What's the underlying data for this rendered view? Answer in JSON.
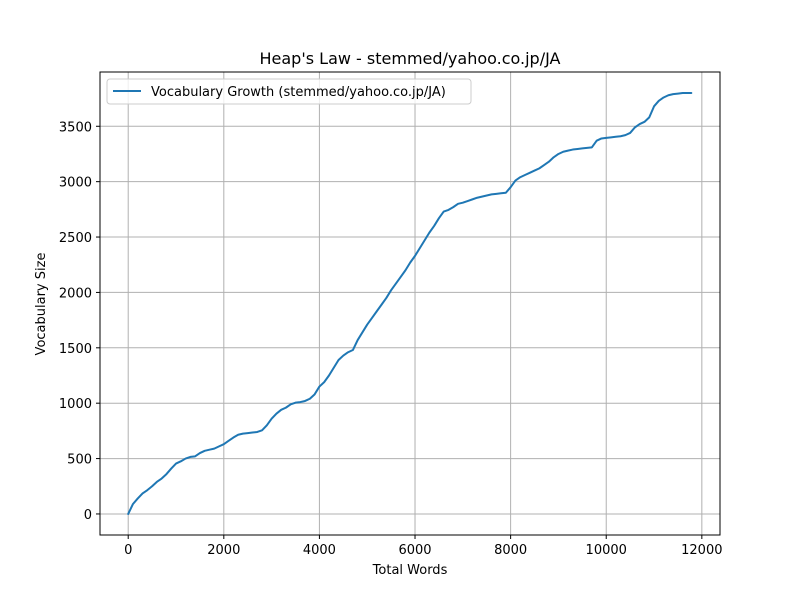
{
  "chart_data": {
    "type": "line",
    "title": "Heap's Law - stemmed/yahoo.co.jp/JA",
    "xlabel": "Total Words",
    "ylabel": "Vocabulary Size",
    "xlim": [
      -590,
      12380
    ],
    "ylim": [
      -190,
      3990
    ],
    "x_ticks": [
      0,
      2000,
      4000,
      6000,
      8000,
      10000,
      12000
    ],
    "x_tick_labels": [
      "0",
      "2000",
      "4000",
      "6000",
      "8000",
      "10000",
      "12000"
    ],
    "y_ticks": [
      0,
      500,
      1000,
      1500,
      2000,
      2500,
      3000,
      3500
    ],
    "y_tick_labels": [
      "0",
      "500",
      "1000",
      "1500",
      "2000",
      "2500",
      "3000",
      "3500"
    ],
    "grid": true,
    "legend_position": "top-left",
    "series": [
      {
        "name": "Vocabulary Growth (stemmed/yahoo.co.jp/JA)",
        "color": "#1f77b4",
        "x": [
          0,
          100,
          200,
          300,
          400,
          500,
          600,
          700,
          800,
          900,
          1000,
          1100,
          1200,
          1300,
          1400,
          1500,
          1600,
          1700,
          1800,
          1900,
          2000,
          2100,
          2200,
          2300,
          2400,
          2500,
          2600,
          2700,
          2800,
          2900,
          3000,
          3100,
          3200,
          3300,
          3400,
          3500,
          3600,
          3700,
          3800,
          3900,
          4000,
          4100,
          4200,
          4300,
          4400,
          4500,
          4600,
          4700,
          4800,
          4900,
          5000,
          5100,
          5200,
          5300,
          5400,
          5500,
          5600,
          5700,
          5800,
          5900,
          6000,
          6100,
          6200,
          6300,
          6400,
          6500,
          6600,
          6700,
          6800,
          6900,
          7000,
          7100,
          7200,
          7300,
          7400,
          7500,
          7600,
          7700,
          7800,
          7900,
          8000,
          8100,
          8200,
          8300,
          8400,
          8500,
          8600,
          8700,
          8800,
          8900,
          9000,
          9100,
          9200,
          9300,
          9400,
          9500,
          9600,
          9700,
          9800,
          9900,
          10000,
          10100,
          10200,
          10300,
          10400,
          10500,
          10600,
          10700,
          10800,
          10900,
          11000,
          11100,
          11200,
          11300,
          11400,
          11500,
          11600,
          11700,
          11780
        ],
        "y": [
          0,
          90,
          140,
          185,
          215,
          250,
          290,
          320,
          360,
          410,
          455,
          475,
          500,
          515,
          520,
          550,
          570,
          580,
          590,
          610,
          630,
          660,
          690,
          715,
          725,
          730,
          735,
          740,
          755,
          800,
          860,
          905,
          940,
          960,
          990,
          1005,
          1010,
          1020,
          1040,
          1080,
          1150,
          1190,
          1250,
          1320,
          1390,
          1430,
          1460,
          1480,
          1570,
          1640,
          1710,
          1770,
          1830,
          1890,
          1950,
          2020,
          2080,
          2140,
          2200,
          2270,
          2330,
          2400,
          2470,
          2540,
          2600,
          2670,
          2730,
          2745,
          2770,
          2800,
          2810,
          2825,
          2840,
          2855,
          2865,
          2875,
          2885,
          2890,
          2895,
          2900,
          2950,
          3010,
          3040,
          3060,
          3080,
          3100,
          3120,
          3150,
          3180,
          3220,
          3250,
          3270,
          3280,
          3290,
          3295,
          3300,
          3305,
          3310,
          3370,
          3390,
          3395,
          3400,
          3405,
          3410,
          3420,
          3440,
          3490,
          3520,
          3540,
          3580,
          3680,
          3730,
          3760,
          3780,
          3790,
          3795,
          3800,
          3800,
          3800
        ]
      }
    ]
  }
}
